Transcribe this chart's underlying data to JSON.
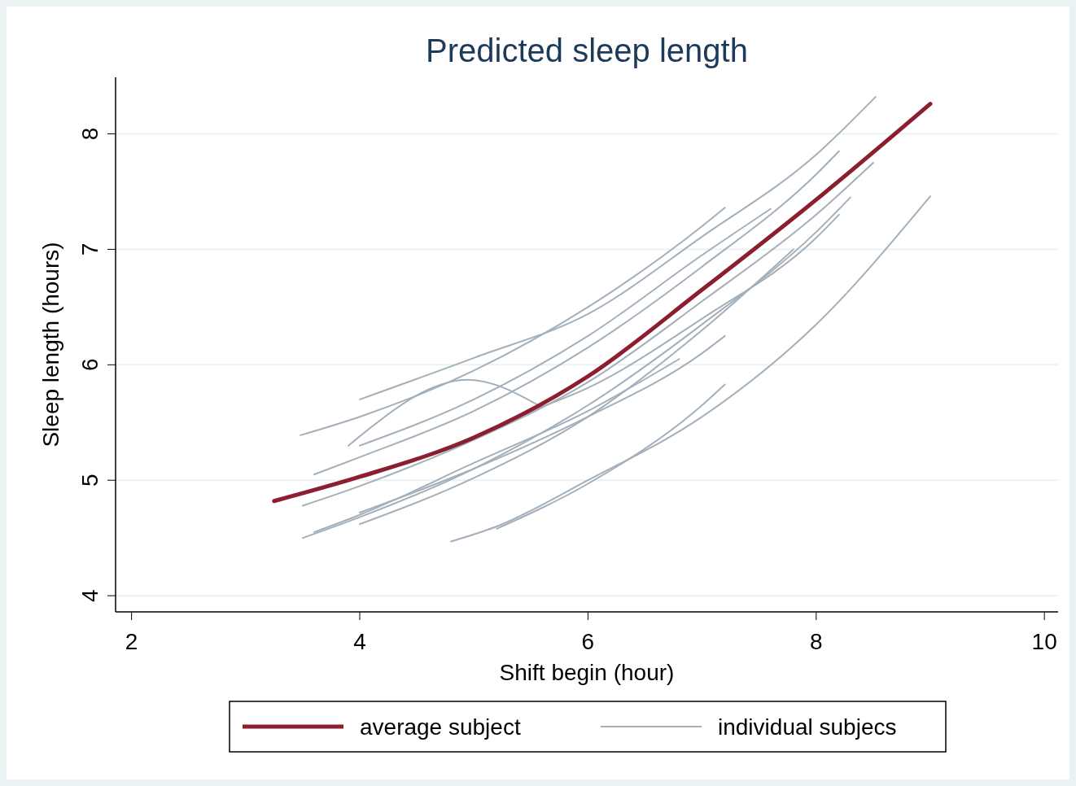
{
  "chart_data": {
    "type": "line",
    "title": "Predicted sleep length",
    "xlabel": "Shift begin (hour)",
    "ylabel": "Sleep length (hours)",
    "xlim": [
      1.86,
      10.12
    ],
    "ylim": [
      3.86,
      8.49
    ],
    "xticks": [
      2,
      4,
      6,
      8,
      10
    ],
    "yticks": [
      4,
      5,
      6,
      7,
      8
    ],
    "grid": "y",
    "legend": "bottom",
    "series": [
      {
        "name": "average subject",
        "color": "#8b1e2f",
        "x": [
          3.25,
          4,
          5,
          6,
          7,
          8,
          9
        ],
        "values": [
          4.82,
          5.03,
          5.37,
          5.9,
          6.65,
          7.43,
          8.26
        ]
      },
      {
        "name": "individual subjecs",
        "color": "#a3b0bb",
        "x": [
          4,
          5,
          6,
          7,
          8,
          8.52
        ],
        "values": [
          5.7,
          6.06,
          6.44,
          7.11,
          7.82,
          8.32
        ]
      },
      {
        "color": "#a3b0bb",
        "x": [
          3.48,
          4,
          5,
          6,
          7,
          7.2
        ],
        "values": [
          5.39,
          5.55,
          5.95,
          6.5,
          7.2,
          7.36
        ]
      },
      {
        "color": "#a3b0bb",
        "x": [
          3.6,
          4,
          5,
          6,
          7,
          8,
          8.2
        ],
        "values": [
          5.05,
          5.2,
          5.6,
          6.15,
          6.85,
          7.65,
          7.85
        ]
      },
      {
        "color": "#a3b0bb",
        "x": [
          3.5,
          4,
          5,
          6,
          7,
          8,
          8.5
        ],
        "values": [
          4.78,
          4.95,
          5.35,
          5.85,
          6.55,
          7.3,
          7.75
        ]
      },
      {
        "color": "#a3b0bb",
        "x": [
          3.5,
          4,
          5,
          6,
          7,
          8,
          8.3
        ],
        "values": [
          4.5,
          4.68,
          5.1,
          5.65,
          6.35,
          7.15,
          7.45
        ]
      },
      {
        "color": "#a3b0bb",
        "x": [
          4,
          5,
          6,
          7,
          7.8
        ],
        "values": [
          4.62,
          5.02,
          5.55,
          6.3,
          7.0
        ]
      },
      {
        "color": "#a3b0bb",
        "x": [
          4.8,
          5.2,
          6,
          7,
          8,
          9
        ],
        "values": [
          4.47,
          4.6,
          5.0,
          5.55,
          6.35,
          7.46
        ]
      },
      {
        "color": "#a3b0bb",
        "x": [
          5.2,
          6,
          7,
          7.2
        ],
        "values": [
          4.58,
          4.97,
          5.65,
          5.83
        ]
      },
      {
        "color": "#a3b0bb",
        "x": [
          3.9,
          4.95,
          5.6
        ],
        "values": [
          5.3,
          5.87,
          5.63
        ]
      },
      {
        "color": "#a3b0bb",
        "x": [
          4,
          5,
          6,
          7,
          7.6
        ],
        "values": [
          5.3,
          5.7,
          6.25,
          6.95,
          7.35
        ]
      },
      {
        "color": "#a3b0bb",
        "x": [
          4,
          5,
          6,
          7,
          7.2
        ],
        "values": [
          4.72,
          5.1,
          5.55,
          6.1,
          6.25
        ]
      },
      {
        "color": "#a3b0bb",
        "x": [
          3.6,
          4,
          5,
          6,
          6.8
        ],
        "values": [
          4.55,
          4.7,
          5.15,
          5.6,
          6.05
        ]
      },
      {
        "color": "#a3b0bb",
        "x": [
          5.5,
          6,
          7,
          8,
          8.2
        ],
        "values": [
          5.6,
          5.8,
          6.4,
          7.1,
          7.3
        ]
      }
    ]
  }
}
